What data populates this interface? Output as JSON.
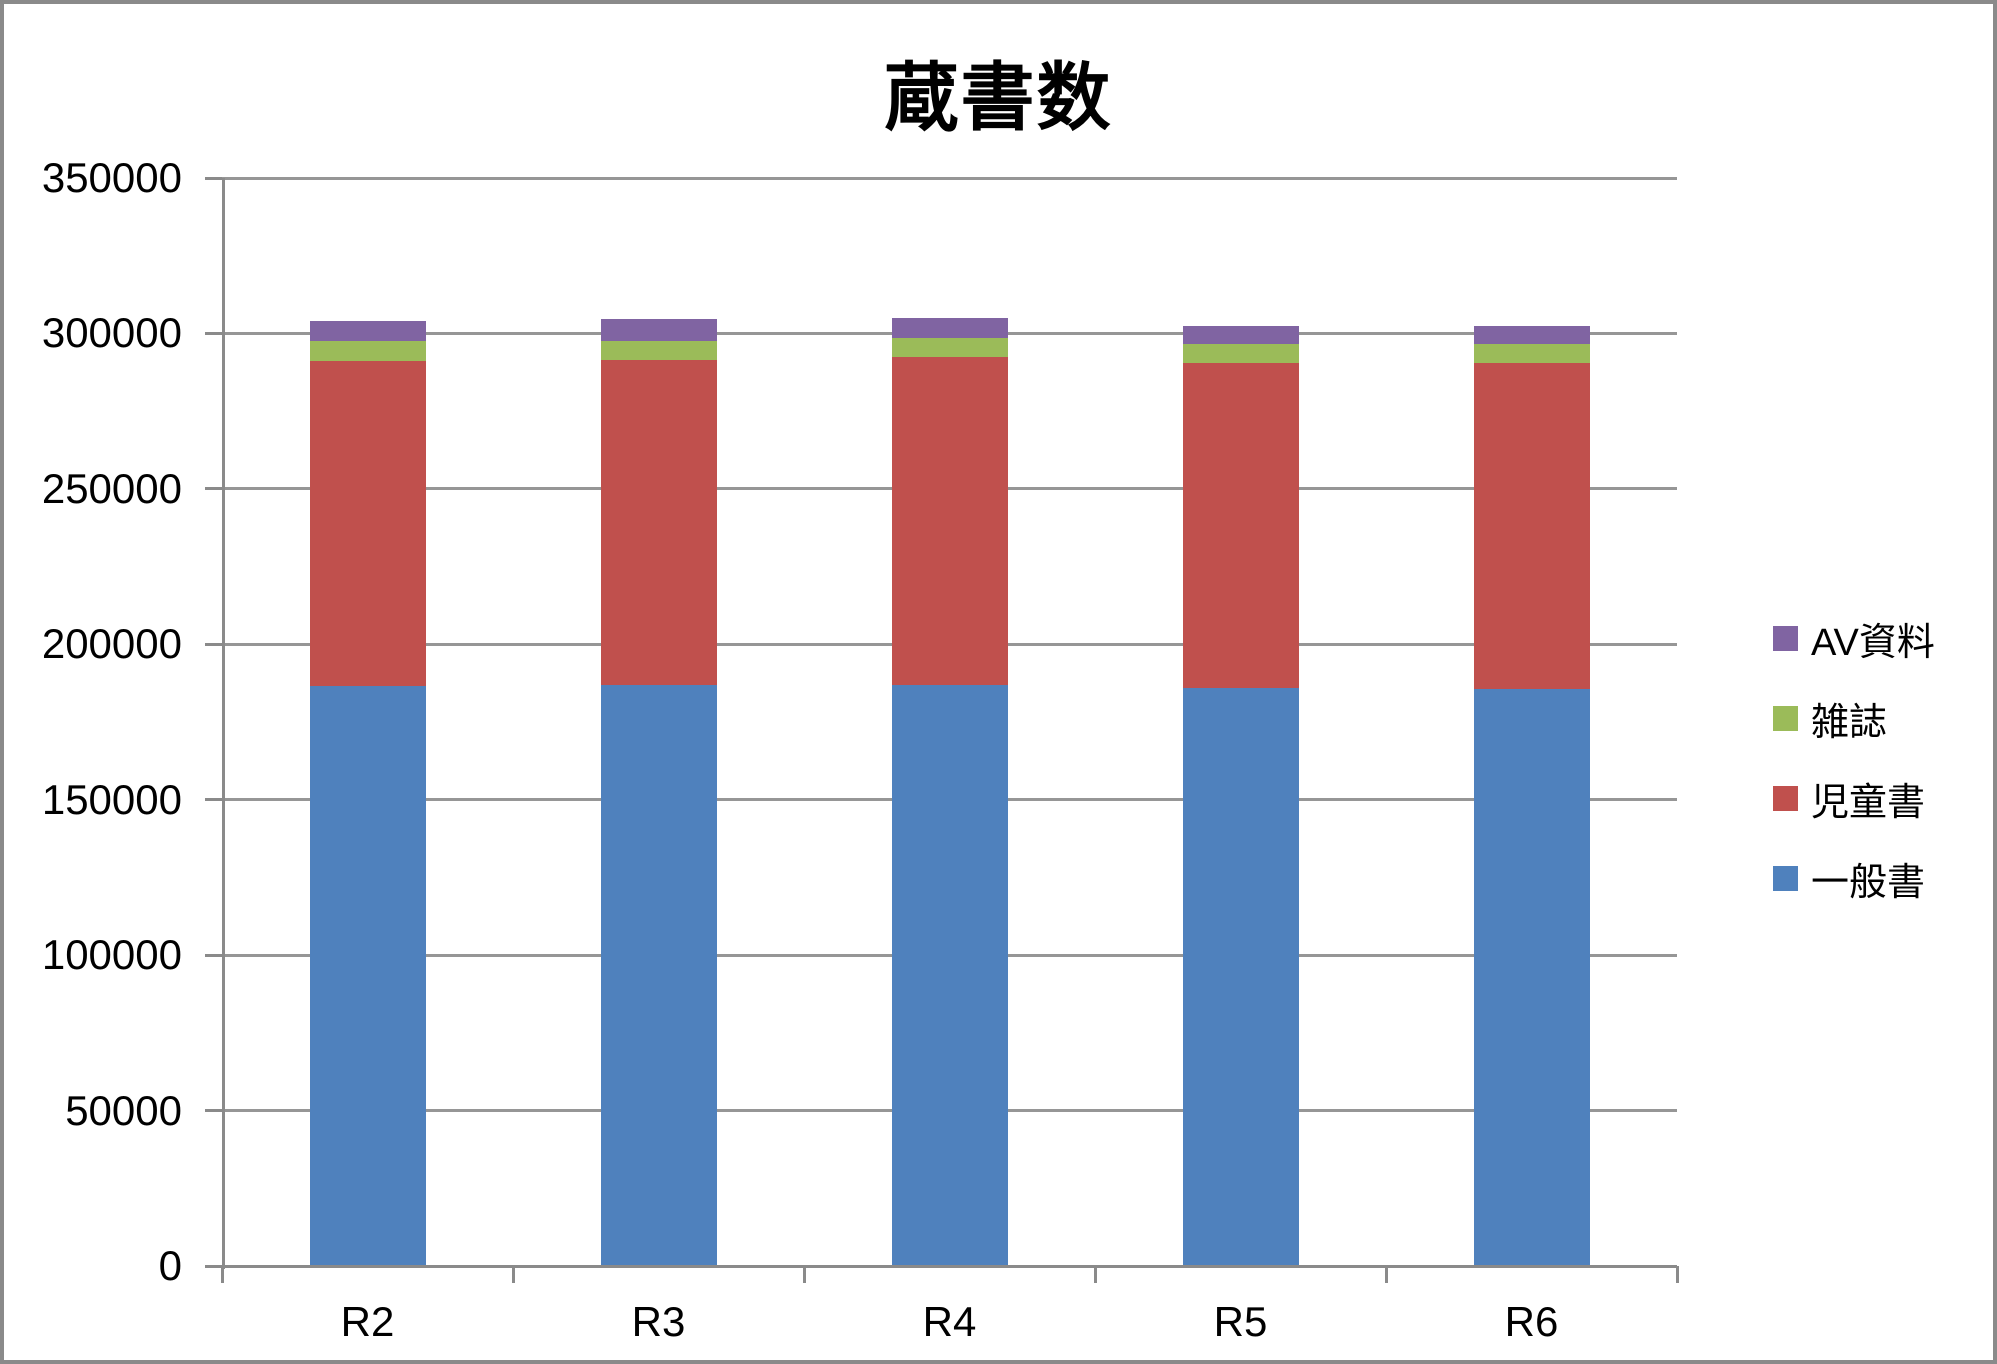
{
  "window": {
    "background": "#ffffff",
    "border_color": "#8a8a8a"
  },
  "chart_data": {
    "type": "bar",
    "stacked": true,
    "title": "蔵書数",
    "categories": [
      "R2",
      "R3",
      "R4",
      "R5",
      "R6"
    ],
    "series": [
      {
        "name": "一般書",
        "color": "#4F81BD",
        "values": [
          186500,
          187000,
          187000,
          186000,
          185500
        ]
      },
      {
        "name": "児童書",
        "color": "#C0504D",
        "values": [
          104500,
          104500,
          105500,
          104500,
          105000
        ]
      },
      {
        "name": "雑誌",
        "color": "#9BBB59",
        "values": [
          6500,
          6000,
          6000,
          6000,
          6000
        ]
      },
      {
        "name": "AV資料",
        "color": "#8064A2",
        "values": [
          6500,
          7000,
          6500,
          6000,
          6000
        ]
      }
    ],
    "stack_order": "bottom-to-top",
    "totals": [
      304000,
      304500,
      305000,
      302500,
      302500
    ],
    "xlabel": "",
    "ylabel": "",
    "ylim": [
      0,
      350000
    ],
    "ytick_step": 50000,
    "ytick_labels": [
      "0",
      "50000",
      "100000",
      "150000",
      "200000",
      "250000",
      "300000",
      "350000"
    ],
    "grid": true,
    "legend_position": "right",
    "legend_order": [
      "AV資料",
      "雑誌",
      "児童書",
      "一般書"
    ],
    "gridline_color": "#969696",
    "axis_color": "#8a8a8a"
  }
}
